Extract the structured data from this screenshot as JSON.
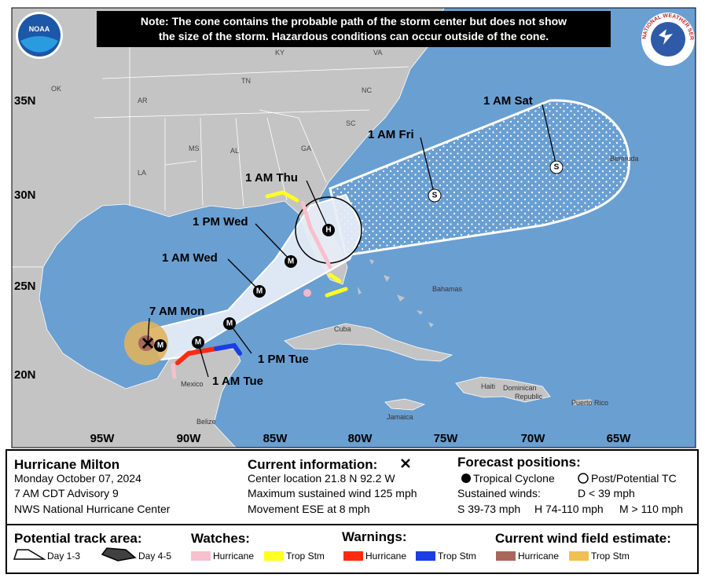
{
  "note": [
    "Note: The cone contains the probable path of the storm center but does not show",
    "the size of the storm. Hazardous conditions can occur outside of the cone."
  ],
  "logos": {
    "noaa": "NOAA",
    "nws": "NATIONAL WEATHER SERVICE"
  },
  "map": {
    "states": [
      "KY",
      "VA",
      "OK",
      "AR",
      "TN",
      "NC",
      "SC",
      "MS",
      "AL",
      "GA",
      "LA"
    ],
    "latitudes": [
      "35N",
      "30N",
      "25N",
      "20N"
    ],
    "longitudes": [
      "95W",
      "90W",
      "85W",
      "80W",
      "75W",
      "70W",
      "65W"
    ],
    "places": [
      "Bermuda",
      "Bahamas",
      "Cuba",
      "Haiti",
      "Dominican",
      "Republic",
      "Jamaica",
      "Puerto Rico",
      "Mexico",
      "Belize"
    ],
    "forecast_labels": [
      "1 AM Sat",
      "1 AM Fri",
      "1 AM Thu",
      "1 PM Wed",
      "1 AM Wed",
      "7 AM Mon",
      "1 PM Tue",
      "1 AM Tue"
    ],
    "markers": [
      "M",
      "M",
      "M",
      "M",
      "M",
      "H",
      "S",
      "S"
    ]
  },
  "info": {
    "title": "Hurricane Milton",
    "date": "Monday October 07, 2024",
    "advisory": "7 AM CDT Advisory 9",
    "center": "NWS National Hurricane Center",
    "current_heading": "Current information:",
    "current": [
      "Center location 21.8 N 92.2 W",
      "Maximum sustained wind 125 mph",
      "Movement ESE at 8 mph"
    ],
    "forecast_heading": "Forecast positions:",
    "tropical_cyclone": "Tropical Cyclone",
    "post_tc": "Post/Potential TC",
    "sustained_winds": "Sustained winds:",
    "winds": [
      "D < 39 mph",
      "S 39-73 mph",
      "H 74-110 mph",
      "M > 110 mph"
    ]
  },
  "legend": {
    "track_heading": "Potential track area:",
    "day13": "Day 1-3",
    "day45": "Day 4-5",
    "watches_heading": "Watches:",
    "watches": [
      "Hurricane",
      "Trop Stm"
    ],
    "warnings_heading": "Warnings:",
    "warnings": [
      "Hurricane",
      "Trop Stm"
    ],
    "wind_heading": "Current wind field estimate:",
    "wind": [
      "Hurricane",
      "Trop Stm"
    ]
  }
}
